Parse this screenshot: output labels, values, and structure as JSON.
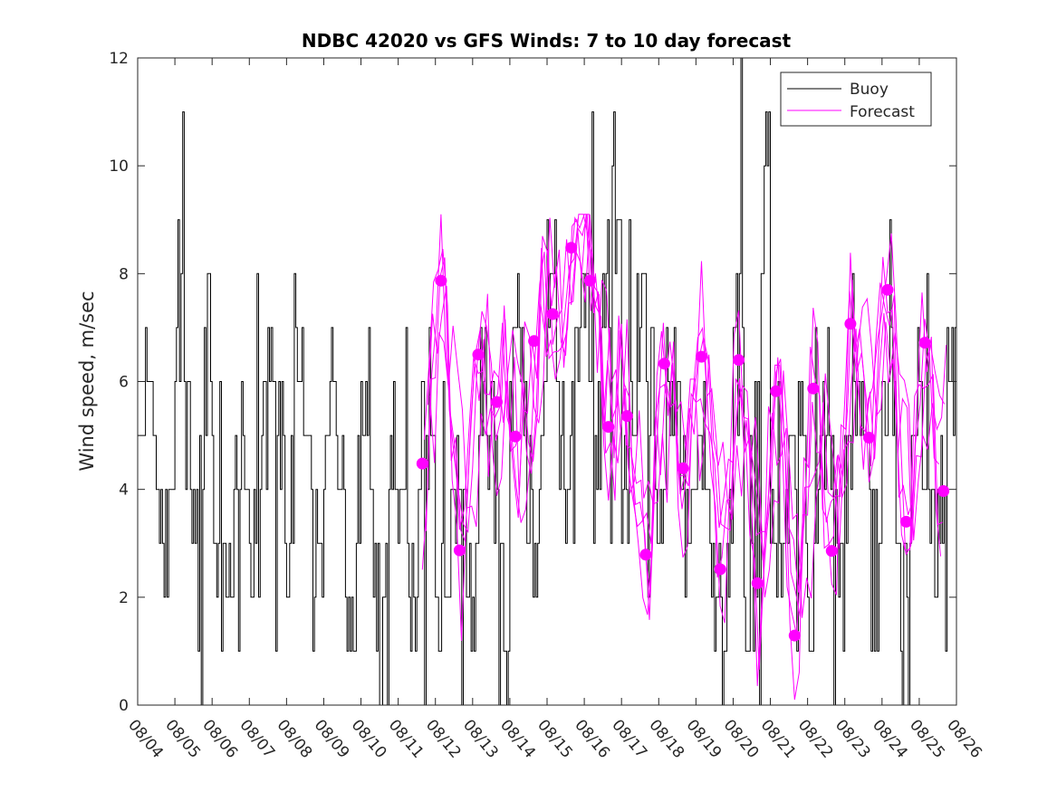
{
  "chart_data": {
    "type": "line",
    "title": "NDBC 42020 vs GFS Winds: 7 to 10 day forecast",
    "xlabel": "",
    "ylabel": "Wind speed, m/sec",
    "xlim": [
      0,
      22
    ],
    "ylim": [
      0,
      12
    ],
    "yticks": [
      0,
      2,
      4,
      6,
      8,
      10,
      12
    ],
    "xtick_labels": [
      "08/04",
      "08/05",
      "08/06",
      "08/07",
      "08/08",
      "08/09",
      "08/10",
      "08/11",
      "08/12",
      "08/13",
      "08/14",
      "08/15",
      "08/16",
      "08/17",
      "08/18",
      "08/19",
      "08/20",
      "08/21",
      "08/22",
      "08/23",
      "08/24",
      "08/25",
      "08/26"
    ],
    "legend": {
      "location": "top-right",
      "entries": [
        "Buoy",
        "Forecast"
      ]
    },
    "colors": {
      "buoy": "#000000",
      "forecast": "#ff00ff",
      "axis": "#262626"
    },
    "series": [
      {
        "name": "Buoy",
        "description": "hourly observed wind speed (daily min/max envelope)",
        "daily_min": [
          2,
          0,
          1,
          1,
          1,
          1,
          0,
          0,
          0,
          0,
          2,
          3,
          3,
          2,
          2,
          0,
          0,
          1,
          0,
          1,
          0,
          1,
          2
        ],
        "daily_max": [
          7,
          11,
          6,
          8,
          8,
          7,
          7,
          7,
          6,
          7,
          8,
          9,
          11,
          9,
          7,
          6,
          12,
          6,
          7,
          8,
          9,
          8,
          6
        ]
      },
      {
        "name": "Forecast",
        "description": "GFS 7-10 day forecast markers (x in days since 08/04)",
        "points": [
          {
            "x": 7.65,
            "y": 4.48
          },
          {
            "x": 8.15,
            "y": 7.87
          },
          {
            "x": 8.65,
            "y": 2.87
          },
          {
            "x": 9.15,
            "y": 6.5
          },
          {
            "x": 9.65,
            "y": 5.62
          },
          {
            "x": 10.15,
            "y": 4.98
          },
          {
            "x": 10.65,
            "y": 6.75
          },
          {
            "x": 11.15,
            "y": 7.25
          },
          {
            "x": 11.65,
            "y": 8.48
          },
          {
            "x": 12.15,
            "y": 7.87
          },
          {
            "x": 12.65,
            "y": 5.16
          },
          {
            "x": 13.15,
            "y": 5.36
          },
          {
            "x": 13.65,
            "y": 2.79
          },
          {
            "x": 14.15,
            "y": 6.33
          },
          {
            "x": 14.65,
            "y": 4.39
          },
          {
            "x": 15.15,
            "y": 6.46
          },
          {
            "x": 15.65,
            "y": 2.52
          },
          {
            "x": 16.15,
            "y": 6.4
          },
          {
            "x": 16.65,
            "y": 2.26
          },
          {
            "x": 17.15,
            "y": 5.82
          },
          {
            "x": 17.65,
            "y": 1.29
          },
          {
            "x": 18.15,
            "y": 5.87
          },
          {
            "x": 18.65,
            "y": 2.86
          },
          {
            "x": 19.15,
            "y": 7.07
          },
          {
            "x": 19.65,
            "y": 4.96
          },
          {
            "x": 20.15,
            "y": 7.7
          },
          {
            "x": 20.65,
            "y": 3.4
          },
          {
            "x": 21.15,
            "y": 6.72
          },
          {
            "x": 21.65,
            "y": 3.97
          }
        ]
      }
    ]
  }
}
